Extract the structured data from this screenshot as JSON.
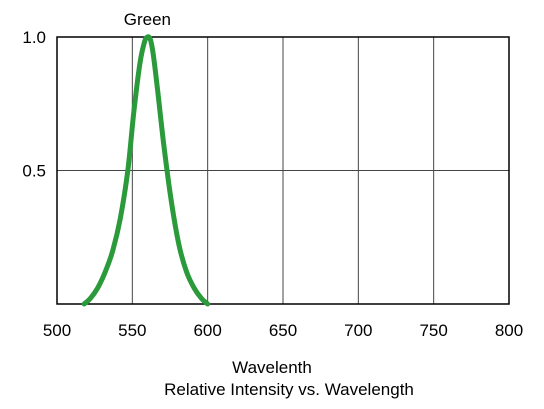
{
  "chart_data": {
    "type": "line",
    "title": "",
    "xlabel": "Wavelenth",
    "caption": "Relative Intensity vs. Wavelength",
    "xlim": [
      500,
      800
    ],
    "ylim": [
      0,
      1.0
    ],
    "x_ticks": [
      "500",
      "550",
      "600",
      "650",
      "700",
      "750",
      "800"
    ],
    "x_tick_values": [
      500,
      550,
      600,
      650,
      700,
      750,
      800
    ],
    "y_ticks": [
      "0.5",
      "1.0"
    ],
    "y_tick_values": [
      0.5,
      1.0
    ],
    "grid": true,
    "series": [
      {
        "name": "Green",
        "color": "#2a9a3a",
        "x": [
          518,
          522,
          527,
          532,
          537,
          542,
          547,
          551,
          555,
          558,
          560,
          562,
          564,
          567,
          571,
          576,
          581,
          586,
          591,
          596,
          600
        ],
        "y": [
          0.0,
          0.02,
          0.06,
          0.12,
          0.2,
          0.32,
          0.5,
          0.72,
          0.9,
          0.98,
          1.0,
          0.99,
          0.93,
          0.79,
          0.59,
          0.38,
          0.22,
          0.12,
          0.06,
          0.02,
          0.0
        ]
      }
    ]
  }
}
